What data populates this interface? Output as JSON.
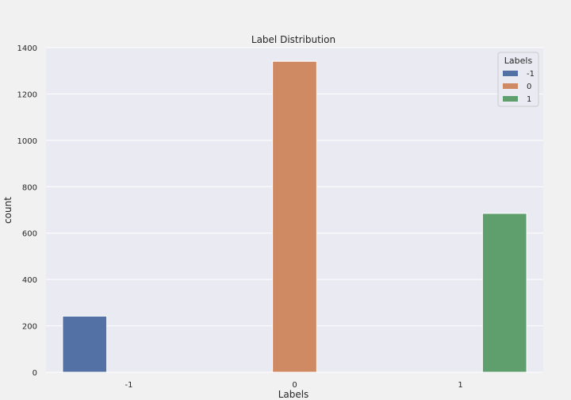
{
  "chart_data": {
    "type": "bar",
    "title": "Label Distribution",
    "xlabel": "Labels",
    "ylabel": "count",
    "categories": [
      "-1",
      "0",
      "1"
    ],
    "series": [
      {
        "name": "-1",
        "color": "#5471a6",
        "values": [
          242,
          null,
          null
        ]
      },
      {
        "name": "0",
        "color": "#d08a63",
        "values": [
          null,
          1341,
          null
        ]
      },
      {
        "name": "1",
        "color": "#5e9f6d",
        "values": [
          null,
          null,
          685
        ]
      }
    ],
    "ylim": [
      0,
      1400
    ],
    "yticks": [
      0,
      200,
      400,
      600,
      800,
      1000,
      1200,
      1400
    ],
    "grid": true,
    "legend": {
      "title": "Labels",
      "position": "top-right"
    }
  }
}
